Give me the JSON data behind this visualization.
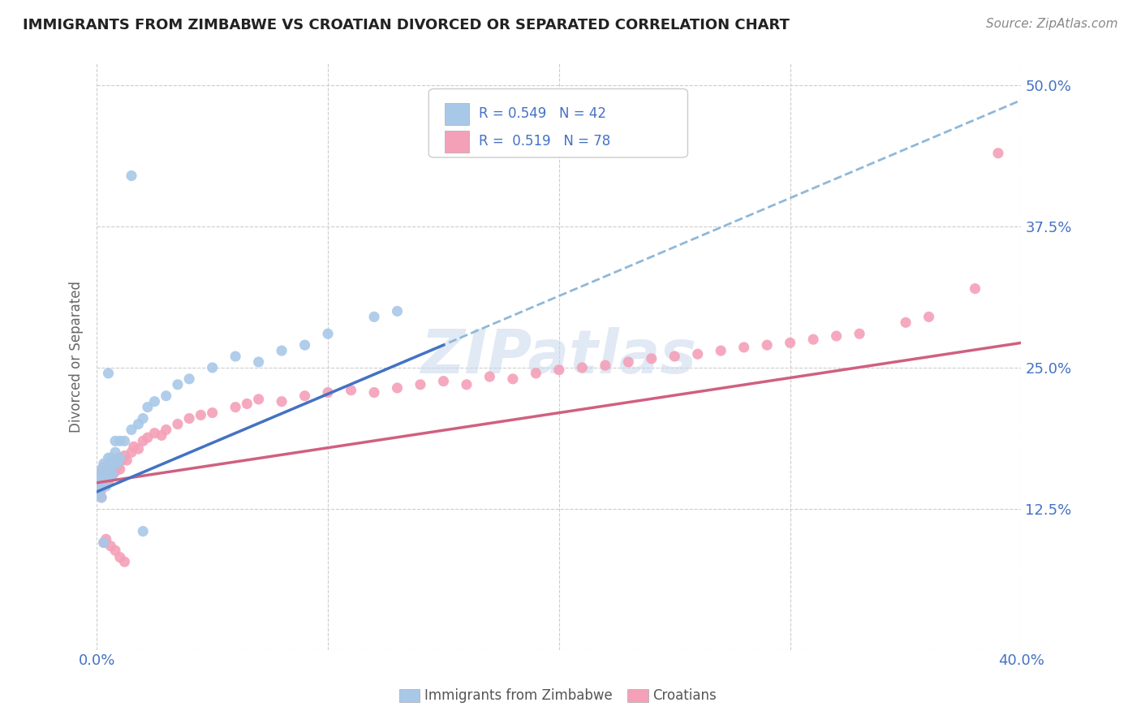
{
  "title": "IMMIGRANTS FROM ZIMBABWE VS CROATIAN DIVORCED OR SEPARATED CORRELATION CHART",
  "source": "Source: ZipAtlas.com",
  "ylabel": "Divorced or Separated",
  "legend_label1": "Immigrants from Zimbabwe",
  "legend_label2": "Croatians",
  "R1": 0.549,
  "N1": 42,
  "R2": 0.519,
  "N2": 78,
  "color1": "#a8c8e8",
  "color2": "#f4a0b8",
  "trend1_color": "#4472c4",
  "trend2_color": "#d06080",
  "trend1_dash_color": "#90b8d8",
  "xlim": [
    0.0,
    0.4
  ],
  "ylim": [
    0.0,
    0.52
  ],
  "ytick_vals": [
    0.0,
    0.125,
    0.25,
    0.375,
    0.5
  ],
  "ytick_labels_right": [
    "",
    "12.5%",
    "25.0%",
    "37.5%",
    "50.0%"
  ],
  "xtick_vals": [
    0.0,
    0.1,
    0.2,
    0.3,
    0.4
  ],
  "xtick_labels": [
    "0.0%",
    "",
    "",
    "",
    "40.0%"
  ],
  "blue_x": [
    0.001,
    0.001,
    0.001,
    0.002,
    0.002,
    0.002,
    0.003,
    0.003,
    0.004,
    0.004,
    0.005,
    0.005,
    0.006,
    0.006,
    0.007,
    0.007,
    0.008,
    0.009,
    0.01,
    0.01,
    0.012,
    0.015,
    0.018,
    0.02,
    0.022,
    0.025,
    0.03,
    0.035,
    0.04,
    0.05,
    0.06,
    0.07,
    0.08,
    0.09,
    0.1,
    0.005,
    0.12,
    0.003,
    0.015,
    0.13,
    0.02,
    0.008
  ],
  "blue_y": [
    0.155,
    0.145,
    0.14,
    0.16,
    0.15,
    0.135,
    0.165,
    0.155,
    0.16,
    0.145,
    0.17,
    0.155,
    0.17,
    0.16,
    0.165,
    0.155,
    0.175,
    0.165,
    0.185,
    0.17,
    0.185,
    0.195,
    0.2,
    0.205,
    0.215,
    0.22,
    0.225,
    0.235,
    0.24,
    0.25,
    0.26,
    0.255,
    0.265,
    0.27,
    0.28,
    0.245,
    0.295,
    0.095,
    0.42,
    0.3,
    0.105,
    0.185
  ],
  "pink_x": [
    0.001,
    0.001,
    0.001,
    0.002,
    0.002,
    0.002,
    0.003,
    0.003,
    0.003,
    0.004,
    0.004,
    0.005,
    0.005,
    0.005,
    0.006,
    0.006,
    0.007,
    0.007,
    0.008,
    0.008,
    0.009,
    0.01,
    0.01,
    0.011,
    0.012,
    0.013,
    0.015,
    0.016,
    0.018,
    0.02,
    0.022,
    0.025,
    0.028,
    0.03,
    0.035,
    0.04,
    0.045,
    0.05,
    0.06,
    0.065,
    0.07,
    0.08,
    0.09,
    0.1,
    0.11,
    0.12,
    0.13,
    0.14,
    0.15,
    0.16,
    0.17,
    0.18,
    0.19,
    0.2,
    0.21,
    0.22,
    0.23,
    0.24,
    0.25,
    0.26,
    0.27,
    0.28,
    0.29,
    0.3,
    0.31,
    0.32,
    0.33,
    0.35,
    0.36,
    0.38,
    0.39,
    0.002,
    0.003,
    0.004,
    0.006,
    0.008,
    0.01,
    0.012
  ],
  "pink_y": [
    0.155,
    0.148,
    0.14,
    0.158,
    0.15,
    0.142,
    0.162,
    0.155,
    0.148,
    0.158,
    0.15,
    0.165,
    0.157,
    0.148,
    0.162,
    0.154,
    0.165,
    0.157,
    0.168,
    0.158,
    0.163,
    0.17,
    0.16,
    0.168,
    0.172,
    0.168,
    0.175,
    0.18,
    0.178,
    0.185,
    0.188,
    0.192,
    0.19,
    0.195,
    0.2,
    0.205,
    0.208,
    0.21,
    0.215,
    0.218,
    0.222,
    0.22,
    0.225,
    0.228,
    0.23,
    0.228,
    0.232,
    0.235,
    0.238,
    0.235,
    0.242,
    0.24,
    0.245,
    0.248,
    0.25,
    0.252,
    0.255,
    0.258,
    0.26,
    0.262,
    0.265,
    0.268,
    0.27,
    0.272,
    0.275,
    0.278,
    0.28,
    0.29,
    0.295,
    0.32,
    0.44,
    0.135,
    0.095,
    0.098,
    0.092,
    0.088,
    0.082,
    0.078
  ],
  "trend1_x0": 0.0,
  "trend1_y0": 0.14,
  "trend1_x1": 0.15,
  "trend1_y1": 0.27,
  "trend1_ext_x1": 0.4,
  "trend1_ext_y1": 0.487,
  "trend2_x0": 0.0,
  "trend2_y0": 0.148,
  "trend2_x1": 0.4,
  "trend2_y1": 0.272
}
